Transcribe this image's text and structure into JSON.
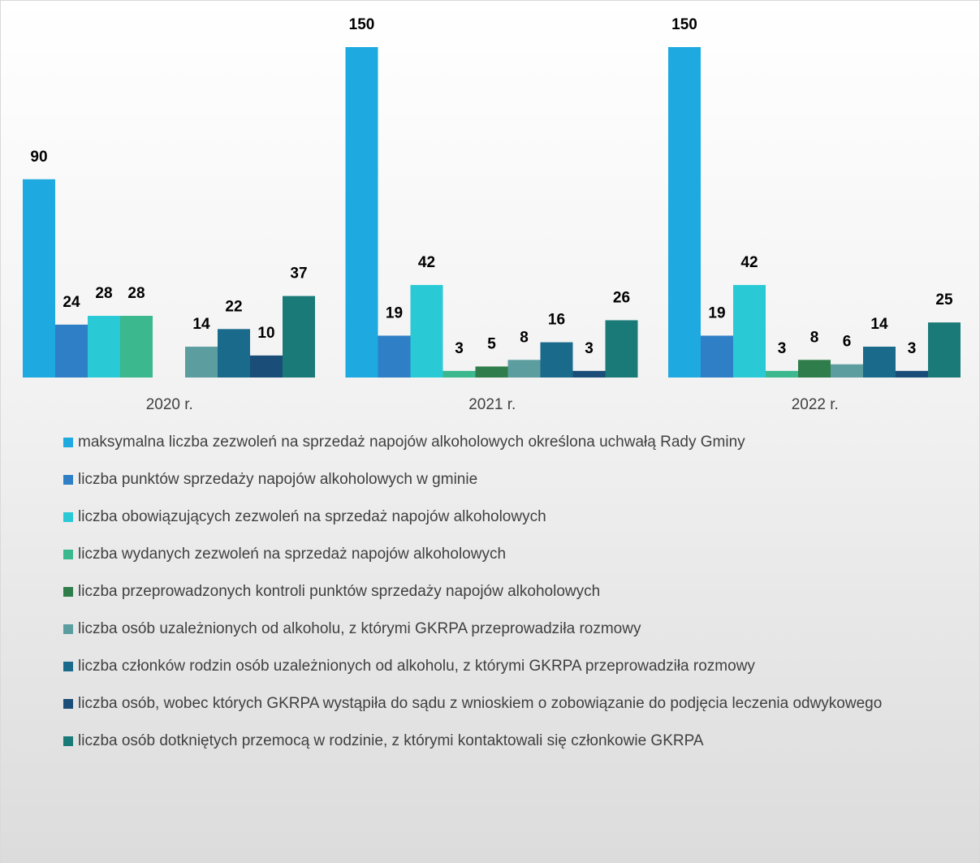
{
  "chart_data": {
    "type": "bar",
    "categories": [
      "2020 r.",
      "2021 r.",
      "2022 r."
    ],
    "ylim": [
      0,
      150
    ],
    "series": [
      {
        "name": "maksymalna liczba zezwoleń na sprzedaż napojów alkoholowych określona uchwałą Rady Gminy",
        "color": "#1ea9e1",
        "values": [
          90,
          150,
          150
        ]
      },
      {
        "name": "liczba punktów sprzedaży napojów alkoholowych w gminie",
        "color": "#2e7fc6",
        "values": [
          24,
          19,
          19
        ]
      },
      {
        "name": "liczba obowiązujących zezwoleń na sprzedaż napojów alkoholowych",
        "color": "#2ac9d6",
        "values": [
          28,
          42,
          42
        ]
      },
      {
        "name": "liczba wydanych zezwoleń na sprzedaż napojów alkoholowych",
        "color": "#3cb88e",
        "values": [
          28,
          3,
          3
        ]
      },
      {
        "name": "liczba przeprowadzonych kontroli punktów sprzedaży napojów alkoholowych",
        "color": "#2e7d4a",
        "values": [
          null,
          5,
          8
        ]
      },
      {
        "name": "liczba osób uzależnionych od alkoholu, z którymi GKRPA przeprowadziła rozmowy",
        "color": "#5c9ea0",
        "values": [
          14,
          8,
          6
        ]
      },
      {
        "name": "liczba członków rodzin osób uzależnionych od alkoholu, z którymi GKRPA przeprowadziła rozmowy",
        "color": "#1a6a8c",
        "values": [
          22,
          16,
          14
        ]
      },
      {
        "name": "liczba osób, wobec których GKRPA wystąpiła do sądu z wnioskiem o zobowiązanie do podjęcia leczenia odwykowego",
        "color": "#1a4d78",
        "values": [
          10,
          3,
          3
        ]
      },
      {
        "name": "liczba osób dotkniętych przemocą w rodzinie, z którymi kontaktowali się członkowie GKRPA",
        "color": "#1a7a78",
        "values": [
          37,
          26,
          25
        ]
      }
    ]
  }
}
